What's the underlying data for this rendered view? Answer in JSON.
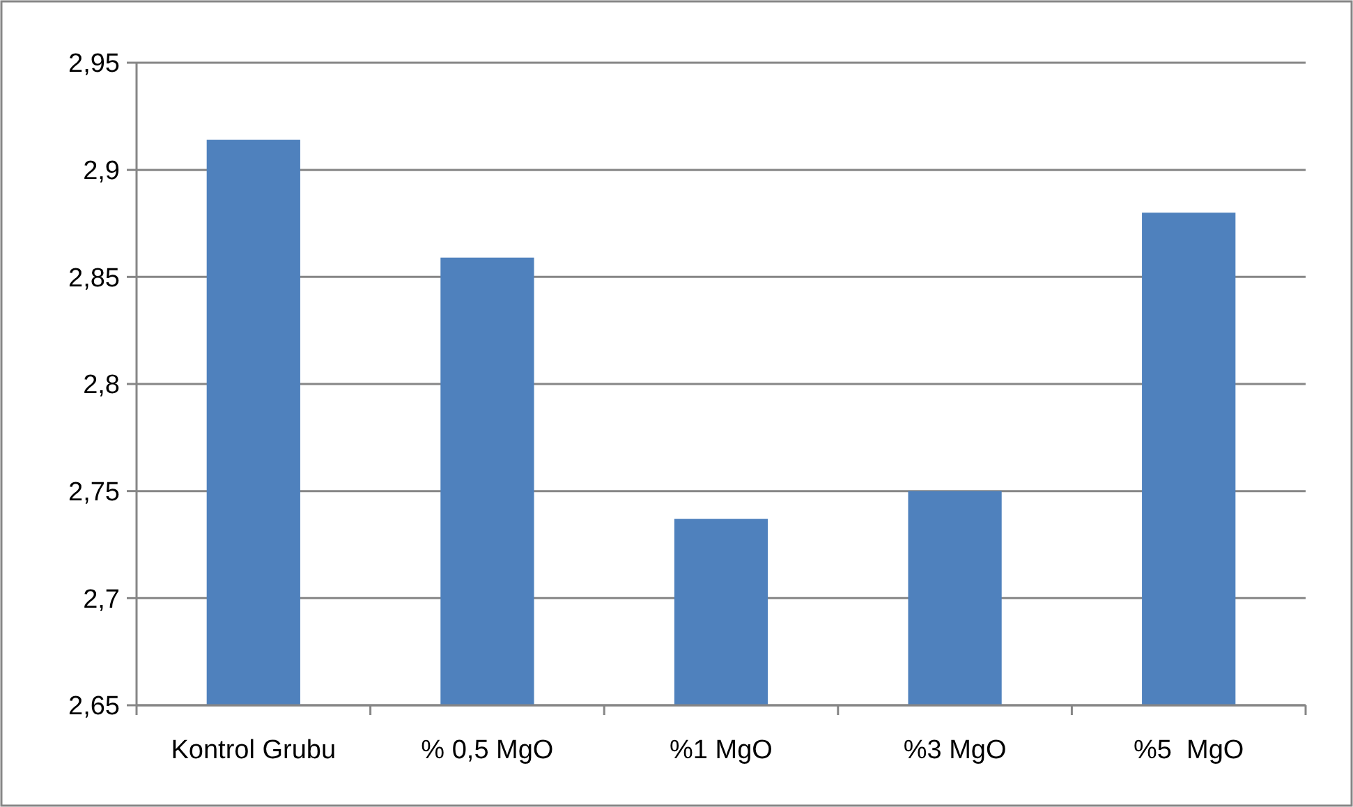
{
  "chart_data": {
    "type": "bar",
    "categories": [
      "Kontrol Grubu",
      "% 0,5 MgO",
      "%1 MgO",
      "%3 MgO",
      "%5  MgO"
    ],
    "values": [
      2.914,
      2.859,
      2.737,
      2.75,
      2.88
    ],
    "color": "#4f81bd",
    "ylim": [
      2.65,
      2.95
    ],
    "yticks": [
      {
        "value": 2.65,
        "label": "2,65"
      },
      {
        "value": 2.7,
        "label": "2,7"
      },
      {
        "value": 2.75,
        "label": "2,75"
      },
      {
        "value": 2.8,
        "label": "2,8"
      },
      {
        "value": 2.85,
        "label": "2,85"
      },
      {
        "value": 2.9,
        "label": "2,9"
      },
      {
        "value": 2.95,
        "label": "2,95"
      }
    ],
    "grid": "y"
  }
}
